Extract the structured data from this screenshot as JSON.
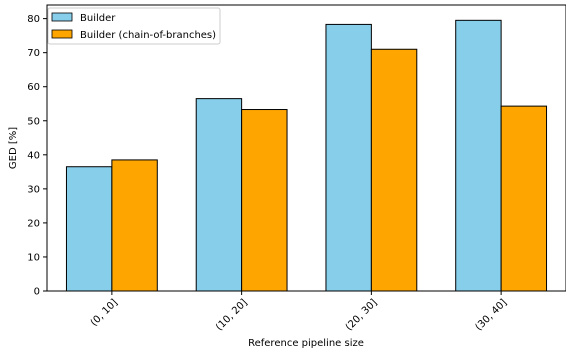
{
  "chart_data": {
    "type": "bar",
    "categories": [
      "(0, 10]",
      "(10, 20]",
      "(20, 30]",
      "(30, 40]"
    ],
    "series": [
      {
        "name": "Builder",
        "values": [
          36.5,
          56.5,
          78.3,
          79.5
        ],
        "color": "#87CEEB"
      },
      {
        "name": "Builder (chain-of-branches)",
        "values": [
          38.5,
          53.3,
          71.0,
          54.3
        ],
        "color": "#FFA500"
      }
    ],
    "xlabel": "Reference pipeline size",
    "ylabel": "GED [%]",
    "ylim": [
      0,
      84
    ],
    "yticks": [
      0,
      10,
      20,
      30,
      40,
      50,
      60,
      70,
      80
    ],
    "grid": false,
    "legend_position": "top-left"
  }
}
